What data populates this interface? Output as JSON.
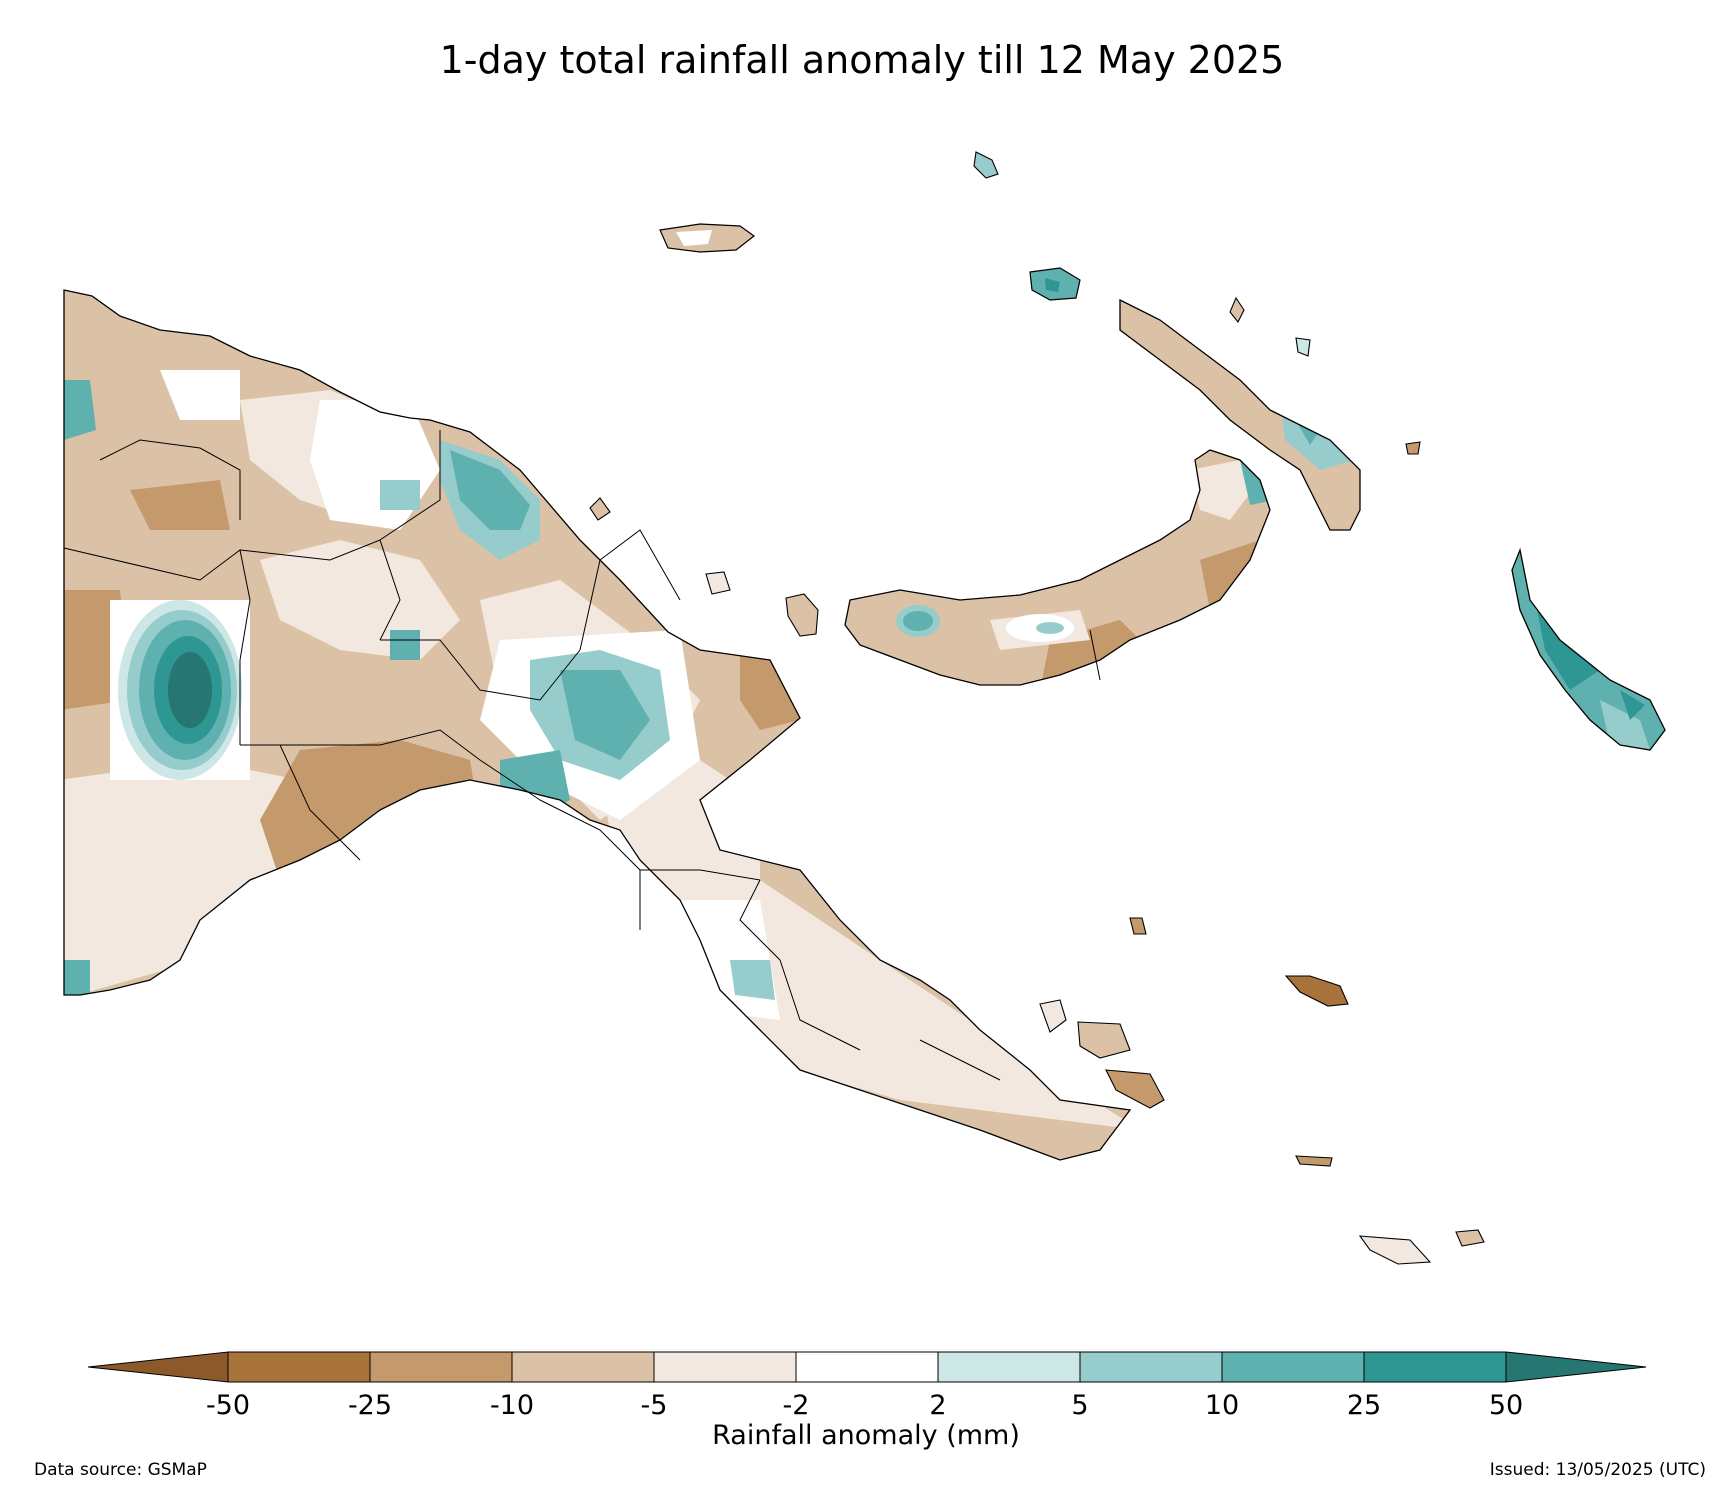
{
  "title": "1-day total rainfall anomaly till 12 May 2025",
  "legend": {
    "label": "Rainfall anomaly (mm)",
    "ticks": [
      "-50",
      "-25",
      "-10",
      "-5",
      "-2",
      "2",
      "5",
      "10",
      "25",
      "50"
    ],
    "bins": [
      {
        "range": "< -50",
        "color": "#8c5a2a"
      },
      {
        "range": "-50 to -25",
        "color": "#a8743c"
      },
      {
        "range": "-25 to -10",
        "color": "#c49a6c"
      },
      {
        "range": "-10 to -5",
        "color": "#dbc1a6"
      },
      {
        "range": "-5 to -2",
        "color": "#f2e8df"
      },
      {
        "range": "-2 to 2",
        "color": "#ffffff"
      },
      {
        "range": "2 to 5",
        "color": "#cde6e6"
      },
      {
        "range": "5 to 10",
        "color": "#96cccb"
      },
      {
        "range": "10 to 25",
        "color": "#5fb1af"
      },
      {
        "range": "25 to 50",
        "color": "#2e9793"
      },
      {
        "range": "> 50",
        "color": "#267772"
      }
    ]
  },
  "footer": {
    "source": "Data source: GSMaP",
    "issued": "Issued: 13/05/2025 (UTC)"
  },
  "colors": {
    "dry_strong": "#a8743c",
    "dry_moderate": "#c49a6c",
    "dry_light": "#dbc1a6",
    "dry_slight": "#f2e8df",
    "neutral": "#ffffff",
    "wet_slight": "#cde6e6",
    "wet_light": "#96cccb",
    "wet_moderate": "#5fb1af",
    "wet_strong": "#2e9793",
    "wet_extreme": "#267772",
    "boundary": "#000000"
  }
}
